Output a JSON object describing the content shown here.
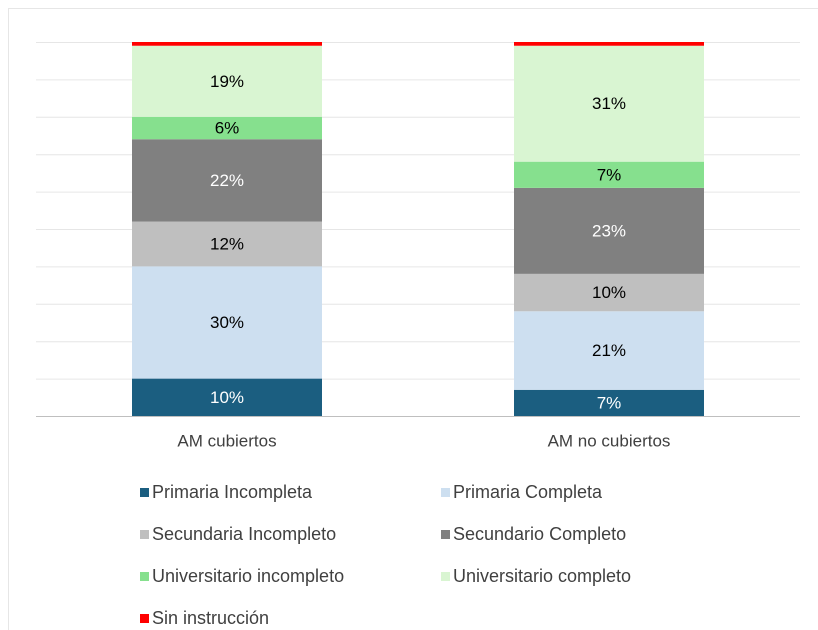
{
  "chart_data": {
    "type": "stacked_bar",
    "categories": [
      "AM cubiertos",
      "AM no cubiertos"
    ],
    "ylim": [
      0,
      100
    ],
    "yticks": [
      0,
      10,
      20,
      30,
      40,
      50,
      60,
      70,
      80,
      90,
      100
    ],
    "grid": true,
    "series": [
      {
        "name": "Primaria Incompleta",
        "color": "#1b5e80",
        "values": [
          10,
          7
        ],
        "value_labels": [
          "10%",
          "7%"
        ]
      },
      {
        "name": "Primaria Completa",
        "color": "#cddff0",
        "values": [
          30,
          21
        ],
        "value_labels": [
          "30%",
          "21%"
        ]
      },
      {
        "name": "Secundaria Incompleto",
        "color": "#bfbfbf",
        "values": [
          12,
          10
        ],
        "value_labels": [
          "12%",
          "10%"
        ]
      },
      {
        "name": "Secundario Completo",
        "color": "#808080",
        "values": [
          22,
          23
        ],
        "value_labels": [
          "22%",
          "23%"
        ]
      },
      {
        "name": "Universitario incompleto",
        "color": "#86e08e",
        "values": [
          6,
          7
        ],
        "value_labels": [
          "6%",
          "7%"
        ]
      },
      {
        "name": "Universitario completo",
        "color": "#d9f5d2",
        "values": [
          19,
          31
        ],
        "value_labels": [
          "19%",
          "31%"
        ]
      },
      {
        "name": "Sin instrucción",
        "color": "#ff0000",
        "values": [
          1,
          1
        ]
      }
    ]
  }
}
